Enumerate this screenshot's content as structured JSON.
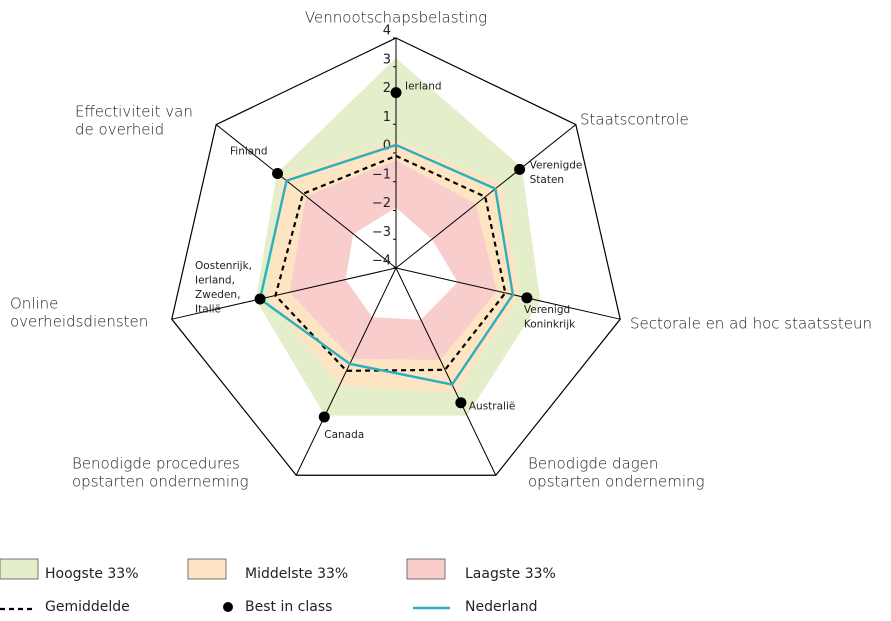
{
  "chart_data": {
    "type": "radar",
    "categories": [
      [
        "Vennootschapsbelasting"
      ],
      [
        "Staatscontrole"
      ],
      [
        "Sectorale en ad hoc staatssteun"
      ],
      [
        "Benodigde dagen",
        "opstarten onderneming"
      ],
      [
        "Benodigde procedures",
        "opstarten onderneming"
      ],
      [
        "Online",
        "overheidsdiensten"
      ],
      [
        "Effectiviteit van",
        "de overheid"
      ]
    ],
    "ylim": [
      -4,
      4
    ],
    "yticks": [
      {
        "value": -4,
        "label": "−4"
      },
      {
        "value": -3,
        "label": "−3"
      },
      {
        "value": -2,
        "label": "−2"
      },
      {
        "value": -1,
        "label": "−1"
      },
      0,
      1,
      2,
      3,
      4
    ],
    "bands": [
      {
        "name": "Hoogste 33%",
        "color": "#e4eecb",
        "values": [
          3.3,
          1.6,
          1.15,
          1.7,
          1.7,
          1.0,
          1.3
        ]
      },
      {
        "name": "Middelste 33%",
        "color": "#fde4c2",
        "values": [
          0.45,
          0.7,
          0.42,
          0.83,
          0.52,
          0.6,
          1.07
        ]
      },
      {
        "name": "Laagste 33%",
        "color": "#f9cdcc",
        "values": [
          -0.25,
          -0.45,
          -0.4,
          -0.45,
          -0.5,
          -0.2,
          0.0
        ],
        "lower": [
          -1.9,
          -2.4,
          -1.8,
          -2.0,
          -2.1,
          -2.2,
          -2.1
        ]
      }
    ],
    "series": [
      {
        "name": "Gemiddelde",
        "color": "#000000",
        "values": [
          -0.1,
          -0.03,
          -0.1,
          -0.07,
          -0.03,
          0.3,
          0.14
        ]
      },
      {
        "name": "Nederland",
        "color": "#2ab0be",
        "values": [
          0.28,
          0.42,
          0.17,
          0.5,
          -0.3,
          0.85,
          0.87
        ]
      }
    ],
    "best": {
      "name": "Best in class",
      "color": "#000000",
      "values": [
        2.1,
        1.5,
        0.67,
        1.2,
        1.75,
        0.85,
        1.27
      ],
      "labels": [
        [
          "Ierland"
        ],
        [
          "Verenigde",
          "Staten"
        ],
        [
          "Verenigd",
          "Koninkrijk"
        ],
        [
          "Australië"
        ],
        [
          "Canada"
        ],
        [
          "Oostenrijk,",
          "Ierland,",
          "Zweden,",
          "Italië"
        ],
        [
          "Finland"
        ]
      ]
    }
  }
}
